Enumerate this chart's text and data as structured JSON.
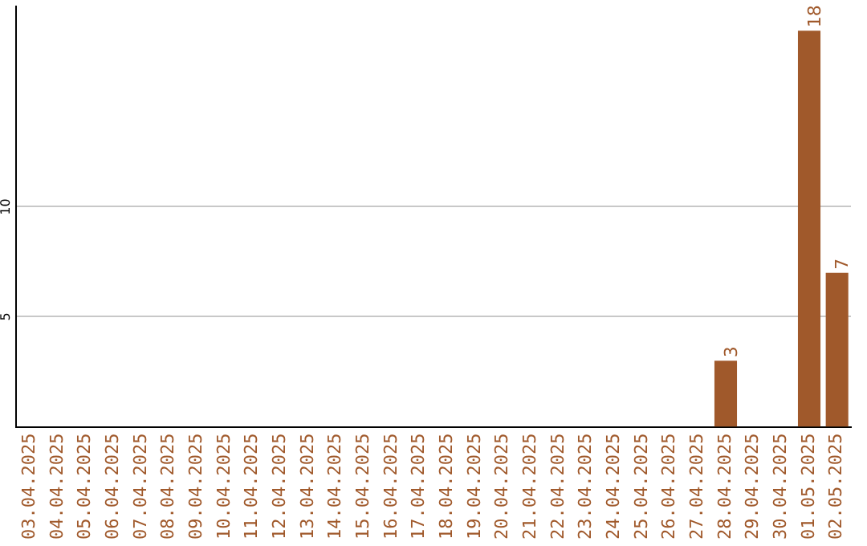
{
  "chart_data": {
    "type": "bar",
    "categories": [
      "03.04.2025",
      "04.04.2025",
      "05.04.2025",
      "06.04.2025",
      "07.04.2025",
      "08.04.2025",
      "09.04.2025",
      "10.04.2025",
      "11.04.2025",
      "12.04.2025",
      "13.04.2025",
      "14.04.2025",
      "15.04.2025",
      "16.04.2025",
      "17.04.2025",
      "18.04.2025",
      "19.04.2025",
      "20.04.2025",
      "21.04.2025",
      "22.04.2025",
      "23.04.2025",
      "24.04.2025",
      "25.04.2025",
      "26.04.2025",
      "27.04.2025",
      "28.04.2025",
      "29.04.2025",
      "30.04.2025",
      "01.05.2025",
      "02.05.2025"
    ],
    "values": [
      0,
      0,
      0,
      0,
      0,
      0,
      0,
      0,
      0,
      0,
      0,
      0,
      0,
      0,
      0,
      0,
      0,
      0,
      0,
      0,
      0,
      0,
      0,
      0,
      0,
      3,
      0,
      0,
      18,
      7
    ],
    "value_labels": [
      null,
      null,
      null,
      null,
      null,
      null,
      null,
      null,
      null,
      null,
      null,
      null,
      null,
      null,
      null,
      null,
      null,
      null,
      null,
      null,
      null,
      null,
      null,
      null,
      null,
      "3",
      null,
      null,
      "18",
      "7"
    ],
    "color": "#a0592b",
    "ylim": [
      0,
      19.1
    ],
    "yticks": [
      5,
      10
    ],
    "grid": "y",
    "legend": false
  }
}
